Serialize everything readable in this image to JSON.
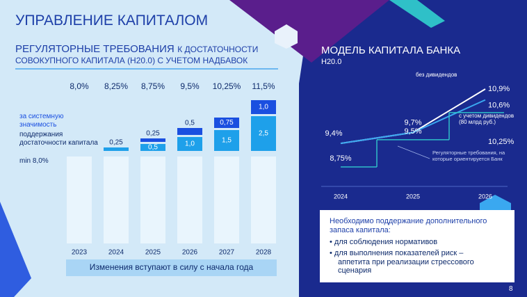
{
  "header": {
    "title": "УПРАВЛЕНИЕ КАПИТАЛОМ",
    "page_number": "8"
  },
  "chart_data": [
    {
      "type": "bar",
      "stacked": true,
      "title": "РЕГУЛЯТОРНЫЕ ТРЕБОВАНИЯ",
      "title_suffix": "К ДОСТАТОЧНОСТИ",
      "subtitle": "СОВОКУПНОГО КАПИТАЛА (Н20.0) С УЧЕТОМ НАДБАВОК",
      "categories": [
        "2023",
        "2024",
        "2025",
        "2026",
        "2027",
        "2028"
      ],
      "total_labels": [
        "8,0%",
        "8,25%",
        "8,75%",
        "9,5%",
        "10,25%",
        "11,5%"
      ],
      "series": [
        {
          "name": "min 8,0%",
          "color": "#e9f5fd",
          "values": [
            8,
            8,
            8,
            8,
            8,
            8
          ]
        },
        {
          "name": "поддержания достаточности капитала",
          "color": "#1ea0ea",
          "values": [
            null,
            0.25,
            0.5,
            1.0,
            1.5,
            2.5
          ],
          "value_labels": [
            null,
            "0,25",
            "0,5",
            "1,0",
            "1,5",
            "2,5"
          ]
        },
        {
          "name": "за системную значимость",
          "color": "#1a4fe0",
          "values": [
            null,
            null,
            0.25,
            0.5,
            0.75,
            1.0
          ],
          "value_labels": [
            null,
            null,
            "0,25",
            "0,5",
            "0,75",
            "1,0"
          ]
        }
      ],
      "note": "Изменения вступают в силу с начала года"
    },
    {
      "type": "line",
      "title": "МОДЕЛЬ КАПИТАЛА БАНКА",
      "subtitle": "Н20.0",
      "categories": [
        "2024",
        "2025",
        "2026"
      ],
      "series": [
        {
          "name": "без дивидендов",
          "color": "#ffffff",
          "values": [
            9.4,
            9.7,
            10.9
          ],
          "value_labels": [
            "9,4%",
            "9,7%",
            "10,9%"
          ]
        },
        {
          "name": "с учетом дивидендов (80 млрд руб.)",
          "color": "#3aa8f0",
          "values": [
            9.4,
            9.7,
            10.6
          ],
          "value_labels": [
            null,
            null,
            "10,6%"
          ]
        },
        {
          "name": "Регуляторные требования, на которые ориентируется Банк",
          "color": "#2fc0c8",
          "step": true,
          "values": [
            8.75,
            9.5,
            10.25
          ],
          "value_labels": [
            "8,75%",
            "9,5%",
            "10,25%"
          ]
        }
      ]
    }
  ],
  "callout": {
    "heading": "Необходимо поддержание дополнительного запаса капитала:",
    "bullets": [
      "для соблюдения нормативов",
      "для выполнения показателей риск – аппетита при реализации стрессового сценария"
    ]
  }
}
